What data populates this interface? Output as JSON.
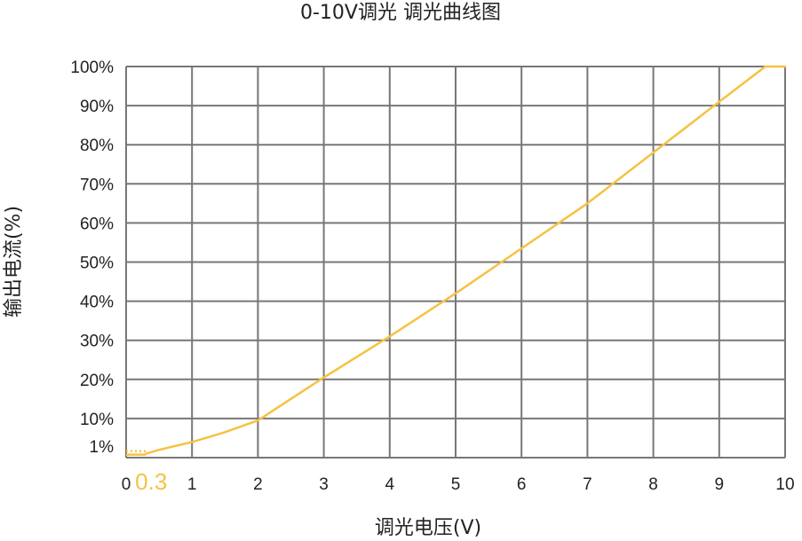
{
  "chart_data": {
    "type": "line",
    "title": "0-10V调光 调光曲线图",
    "xlabel": "调光电压(V)",
    "ylabel": "输出电流(%)",
    "xlim": [
      0,
      10
    ],
    "ylim": [
      0,
      100
    ],
    "x_ticks": [
      "0",
      "1",
      "2",
      "3",
      "4",
      "5",
      "6",
      "7",
      "8",
      "9",
      "10"
    ],
    "y_ticks": [
      {
        "value": 1,
        "label": "1%"
      },
      {
        "value": 10,
        "label": "10%"
      },
      {
        "value": 20,
        "label": "20%"
      },
      {
        "value": 30,
        "label": "30%"
      },
      {
        "value": 40,
        "label": "40%"
      },
      {
        "value": 50,
        "label": "50%"
      },
      {
        "value": 60,
        "label": "60%"
      },
      {
        "value": 70,
        "label": "70%"
      },
      {
        "value": 80,
        "label": "80%"
      },
      {
        "value": 90,
        "label": "90%"
      },
      {
        "value": 100,
        "label": "100%"
      }
    ],
    "grid": true,
    "series": [
      {
        "x": [
          0.3,
          0.5,
          1,
          1.5,
          2,
          3,
          4,
          5,
          6,
          7,
          8,
          9,
          9.7,
          10
        ],
        "y": [
          1,
          2,
          4,
          6.5,
          9.5,
          20.5,
          31,
          42,
          53.5,
          65,
          78,
          91,
          100,
          100
        ]
      }
    ],
    "annotation": {
      "x": 0.3,
      "y": 1,
      "label": "0.3",
      "style": "dotted"
    },
    "colors": {
      "line": "#F5C242",
      "grid": "#777777",
      "text": "#222222"
    }
  }
}
